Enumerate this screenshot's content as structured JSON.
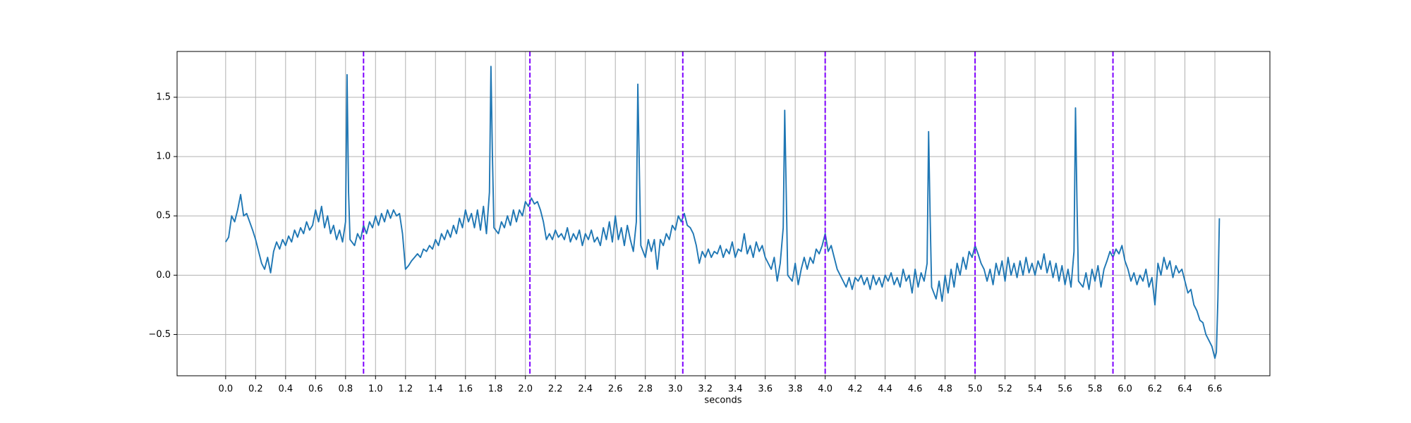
{
  "chart_data": {
    "type": "line",
    "xlabel": "seconds",
    "color": "#1f77b4",
    "grid": true,
    "xlim": [
      -0.324,
      6.967
    ],
    "ylim": [
      -0.848,
      1.886
    ],
    "xticks": [
      {
        "value": 0,
        "label": "0.0"
      },
      0.2,
      0.4,
      0.6,
      0.8,
      {
        "value": 1,
        "label": "1.0"
      },
      1.2,
      1.4,
      1.6,
      1.8,
      {
        "value": 2,
        "label": "2.0"
      },
      2.2,
      2.4,
      2.6,
      2.8,
      {
        "value": 3,
        "label": "3.0"
      },
      3.2,
      3.4,
      3.6,
      3.8,
      {
        "value": 4,
        "label": "4.0"
      },
      4.2,
      4.4,
      4.6,
      4.8,
      {
        "value": 5,
        "label": "5.0"
      },
      5.2,
      5.4,
      5.6,
      5.8,
      {
        "value": 6,
        "label": "6.0"
      },
      6.2,
      6.4,
      6.6
    ],
    "yticks": [
      {
        "value": -0.5,
        "label": "−0.5"
      },
      {
        "value": 0,
        "label": "0.0"
      },
      0.5,
      {
        "value": 1,
        "label": "1.0"
      },
      1.5
    ],
    "vlines": {
      "color": "#7f00ff",
      "x": [
        0.92,
        2.03,
        3.05,
        4.0,
        5.0,
        5.92
      ]
    },
    "x": [
      0,
      0.02,
      0.04,
      0.06,
      0.08,
      0.1,
      0.12,
      0.14,
      0.16,
      0.18,
      0.2,
      0.22,
      0.24,
      0.26,
      0.28,
      0.3,
      0.32,
      0.34,
      0.36,
      0.38,
      0.4,
      0.42,
      0.44,
      0.46,
      0.48,
      0.5,
      0.52,
      0.54,
      0.56,
      0.58,
      0.6,
      0.62,
      0.64,
      0.66,
      0.68,
      0.7,
      0.72,
      0.74,
      0.76,
      0.78,
      0.8,
      0.81,
      0.82,
      0.83,
      0.86,
      0.88,
      0.9,
      0.92,
      0.94,
      0.96,
      0.98,
      1.0,
      1.02,
      1.04,
      1.06,
      1.08,
      1.1,
      1.12,
      1.14,
      1.16,
      1.18,
      1.2,
      1.22,
      1.24,
      1.26,
      1.28,
      1.3,
      1.32,
      1.34,
      1.36,
      1.38,
      1.4,
      1.42,
      1.44,
      1.46,
      1.48,
      1.5,
      1.52,
      1.54,
      1.56,
      1.58,
      1.6,
      1.62,
      1.64,
      1.66,
      1.68,
      1.7,
      1.72,
      1.74,
      1.76,
      1.77,
      1.78,
      1.79,
      1.82,
      1.84,
      1.86,
      1.88,
      1.9,
      1.92,
      1.94,
      1.96,
      1.98,
      2.0,
      2.02,
      2.04,
      2.06,
      2.08,
      2.1,
      2.12,
      2.14,
      2.16,
      2.18,
      2.2,
      2.22,
      2.24,
      2.26,
      2.28,
      2.3,
      2.32,
      2.34,
      2.36,
      2.38,
      2.4,
      2.42,
      2.44,
      2.46,
      2.48,
      2.5,
      2.52,
      2.54,
      2.56,
      2.58,
      2.6,
      2.62,
      2.64,
      2.66,
      2.68,
      2.7,
      2.72,
      2.74,
      2.75,
      2.76,
      2.77,
      2.8,
      2.82,
      2.84,
      2.86,
      2.88,
      2.9,
      2.92,
      2.94,
      2.96,
      2.98,
      3.0,
      3.02,
      3.04,
      3.06,
      3.08,
      3.1,
      3.12,
      3.14,
      3.16,
      3.18,
      3.2,
      3.22,
      3.24,
      3.26,
      3.28,
      3.3,
      3.32,
      3.34,
      3.36,
      3.38,
      3.4,
      3.42,
      3.44,
      3.46,
      3.48,
      3.5,
      3.52,
      3.54,
      3.56,
      3.58,
      3.6,
      3.62,
      3.64,
      3.66,
      3.68,
      3.7,
      3.72,
      3.73,
      3.74,
      3.75,
      3.78,
      3.8,
      3.82,
      3.84,
      3.86,
      3.88,
      3.9,
      3.92,
      3.94,
      3.96,
      3.98,
      4.0,
      4.02,
      4.04,
      4.06,
      4.08,
      4.1,
      4.12,
      4.14,
      4.16,
      4.18,
      4.2,
      4.22,
      4.24,
      4.26,
      4.28,
      4.3,
      4.32,
      4.34,
      4.36,
      4.38,
      4.4,
      4.42,
      4.44,
      4.46,
      4.48,
      4.5,
      4.52,
      4.54,
      4.56,
      4.58,
      4.6,
      4.62,
      4.64,
      4.66,
      4.68,
      4.69,
      4.7,
      4.71,
      4.74,
      4.76,
      4.78,
      4.8,
      4.82,
      4.84,
      4.86,
      4.88,
      4.9,
      4.92,
      4.94,
      4.96,
      4.98,
      5.0,
      5.02,
      5.04,
      5.06,
      5.08,
      5.1,
      5.12,
      5.14,
      5.16,
      5.18,
      5.2,
      5.22,
      5.24,
      5.26,
      5.28,
      5.3,
      5.32,
      5.34,
      5.36,
      5.38,
      5.4,
      5.42,
      5.44,
      5.46,
      5.48,
      5.5,
      5.52,
      5.54,
      5.56,
      5.58,
      5.6,
      5.62,
      5.64,
      5.66,
      5.67,
      5.68,
      5.69,
      5.72,
      5.74,
      5.76,
      5.78,
      5.8,
      5.82,
      5.84,
      5.86,
      5.88,
      5.9,
      5.92,
      5.94,
      5.96,
      5.98,
      6.0,
      6.02,
      6.04,
      6.06,
      6.08,
      6.1,
      6.12,
      6.14,
      6.16,
      6.18,
      6.2,
      6.22,
      6.24,
      6.26,
      6.28,
      6.3,
      6.32,
      6.34,
      6.36,
      6.38,
      6.4,
      6.42,
      6.44,
      6.46,
      6.48,
      6.5,
      6.52,
      6.54,
      6.56,
      6.58,
      6.6,
      6.61,
      6.62,
      6.63
    ],
    "values": [
      0.28,
      0.32,
      0.5,
      0.45,
      0.55,
      0.68,
      0.5,
      0.52,
      0.45,
      0.38,
      0.3,
      0.2,
      0.1,
      0.05,
      0.15,
      0.02,
      0.2,
      0.28,
      0.22,
      0.3,
      0.25,
      0.33,
      0.28,
      0.38,
      0.32,
      0.4,
      0.35,
      0.45,
      0.38,
      0.42,
      0.55,
      0.45,
      0.58,
      0.4,
      0.5,
      0.35,
      0.42,
      0.3,
      0.38,
      0.28,
      0.45,
      1.69,
      0.7,
      0.3,
      0.25,
      0.35,
      0.3,
      0.42,
      0.35,
      0.45,
      0.4,
      0.5,
      0.42,
      0.52,
      0.45,
      0.55,
      0.48,
      0.55,
      0.5,
      0.52,
      0.35,
      0.05,
      0.08,
      0.12,
      0.15,
      0.18,
      0.15,
      0.22,
      0.2,
      0.25,
      0.22,
      0.3,
      0.25,
      0.35,
      0.3,
      0.38,
      0.32,
      0.42,
      0.35,
      0.48,
      0.4,
      0.55,
      0.45,
      0.52,
      0.4,
      0.55,
      0.38,
      0.58,
      0.35,
      0.7,
      1.76,
      1.0,
      0.4,
      0.35,
      0.45,
      0.4,
      0.5,
      0.42,
      0.55,
      0.45,
      0.55,
      0.5,
      0.62,
      0.58,
      0.65,
      0.6,
      0.62,
      0.55,
      0.45,
      0.3,
      0.35,
      0.3,
      0.38,
      0.32,
      0.35,
      0.3,
      0.4,
      0.28,
      0.35,
      0.3,
      0.38,
      0.25,
      0.35,
      0.3,
      0.38,
      0.28,
      0.32,
      0.25,
      0.4,
      0.3,
      0.45,
      0.28,
      0.5,
      0.3,
      0.4,
      0.25,
      0.42,
      0.3,
      0.2,
      0.45,
      1.61,
      0.9,
      0.25,
      0.15,
      0.3,
      0.2,
      0.3,
      0.05,
      0.3,
      0.25,
      0.35,
      0.3,
      0.42,
      0.38,
      0.5,
      0.45,
      0.52,
      0.42,
      0.4,
      0.35,
      0.25,
      0.1,
      0.2,
      0.15,
      0.22,
      0.15,
      0.2,
      0.18,
      0.25,
      0.15,
      0.22,
      0.18,
      0.28,
      0.15,
      0.22,
      0.2,
      0.35,
      0.18,
      0.25,
      0.15,
      0.28,
      0.2,
      0.25,
      0.15,
      0.1,
      0.05,
      0.15,
      -0.05,
      0.1,
      0.4,
      1.39,
      0.7,
      0.0,
      -0.05,
      0.1,
      -0.08,
      0.05,
      0.15,
      0.05,
      0.15,
      0.1,
      0.22,
      0.18,
      0.25,
      0.35,
      0.2,
      0.25,
      0.15,
      0.05,
      0.0,
      -0.05,
      -0.1,
      -0.02,
      -0.12,
      -0.02,
      -0.05,
      0.0,
      -0.08,
      -0.02,
      -0.12,
      0.0,
      -0.08,
      -0.02,
      -0.1,
      0.0,
      -0.05,
      0.02,
      -0.08,
      -0.02,
      -0.1,
      0.05,
      -0.05,
      0.0,
      -0.15,
      0.05,
      -0.1,
      0.02,
      -0.05,
      0.1,
      1.21,
      0.5,
      -0.1,
      -0.2,
      -0.05,
      -0.22,
      0.0,
      -0.15,
      0.05,
      -0.1,
      0.1,
      0.0,
      0.15,
      0.05,
      0.2,
      0.15,
      0.25,
      0.18,
      0.1,
      0.05,
      -0.05,
      0.05,
      -0.08,
      0.1,
      0.0,
      0.12,
      -0.05,
      0.15,
      0.0,
      0.1,
      -0.02,
      0.12,
      0.0,
      0.15,
      0.02,
      0.1,
      0.0,
      0.12,
      0.05,
      0.18,
      0.02,
      0.12,
      -0.02,
      0.1,
      -0.05,
      0.08,
      -0.08,
      0.05,
      -0.1,
      0.2,
      1.41,
      0.6,
      -0.05,
      -0.1,
      0.02,
      -0.12,
      0.05,
      -0.05,
      0.08,
      -0.1,
      0.05,
      0.12,
      0.2,
      0.15,
      0.22,
      0.18,
      0.25,
      0.12,
      0.05,
      -0.05,
      0.02,
      -0.08,
      0.0,
      -0.05,
      0.05,
      -0.1,
      -0.02,
      -0.25,
      0.1,
      0.0,
      0.15,
      0.05,
      0.12,
      -0.02,
      0.08,
      0.02,
      0.05,
      -0.05,
      -0.15,
      -0.12,
      -0.25,
      -0.3,
      -0.38,
      -0.4,
      -0.5,
      -0.55,
      -0.6,
      -0.7,
      -0.65,
      -0.2,
      0.48
    ]
  }
}
